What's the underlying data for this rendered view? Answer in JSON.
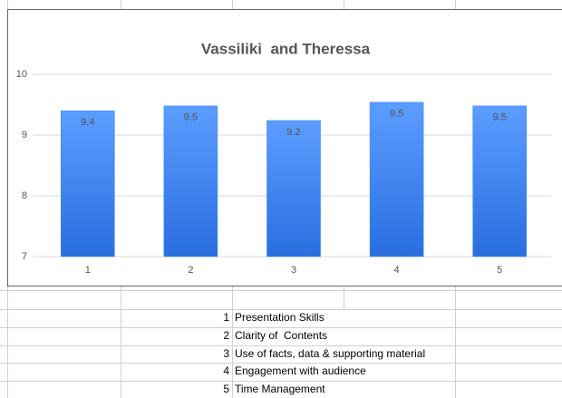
{
  "chart_data": {
    "type": "bar",
    "title": "Vassiliki  and Theressa",
    "categories": [
      "1",
      "2",
      "3",
      "4",
      "5"
    ],
    "values": [
      9.4,
      9.48,
      9.24,
      9.54,
      9.48
    ],
    "value_labels": [
      "9.4",
      "9.5",
      "9.2",
      "9.5",
      "9.5"
    ],
    "color": "#3b82f0",
    "ylim": [
      7,
      10
    ],
    "yticks": [
      7,
      8,
      9,
      10
    ],
    "grid": true
  },
  "key": [
    {
      "number": "1",
      "label": "Presentation Skills"
    },
    {
      "number": "2",
      "label": "Clarity of  Contents"
    },
    {
      "number": "3",
      "label": "Use of facts, data & supporting material"
    },
    {
      "number": "4",
      "label": "Engagement with audience"
    },
    {
      "number": "5",
      "label": "Time Management"
    }
  ]
}
